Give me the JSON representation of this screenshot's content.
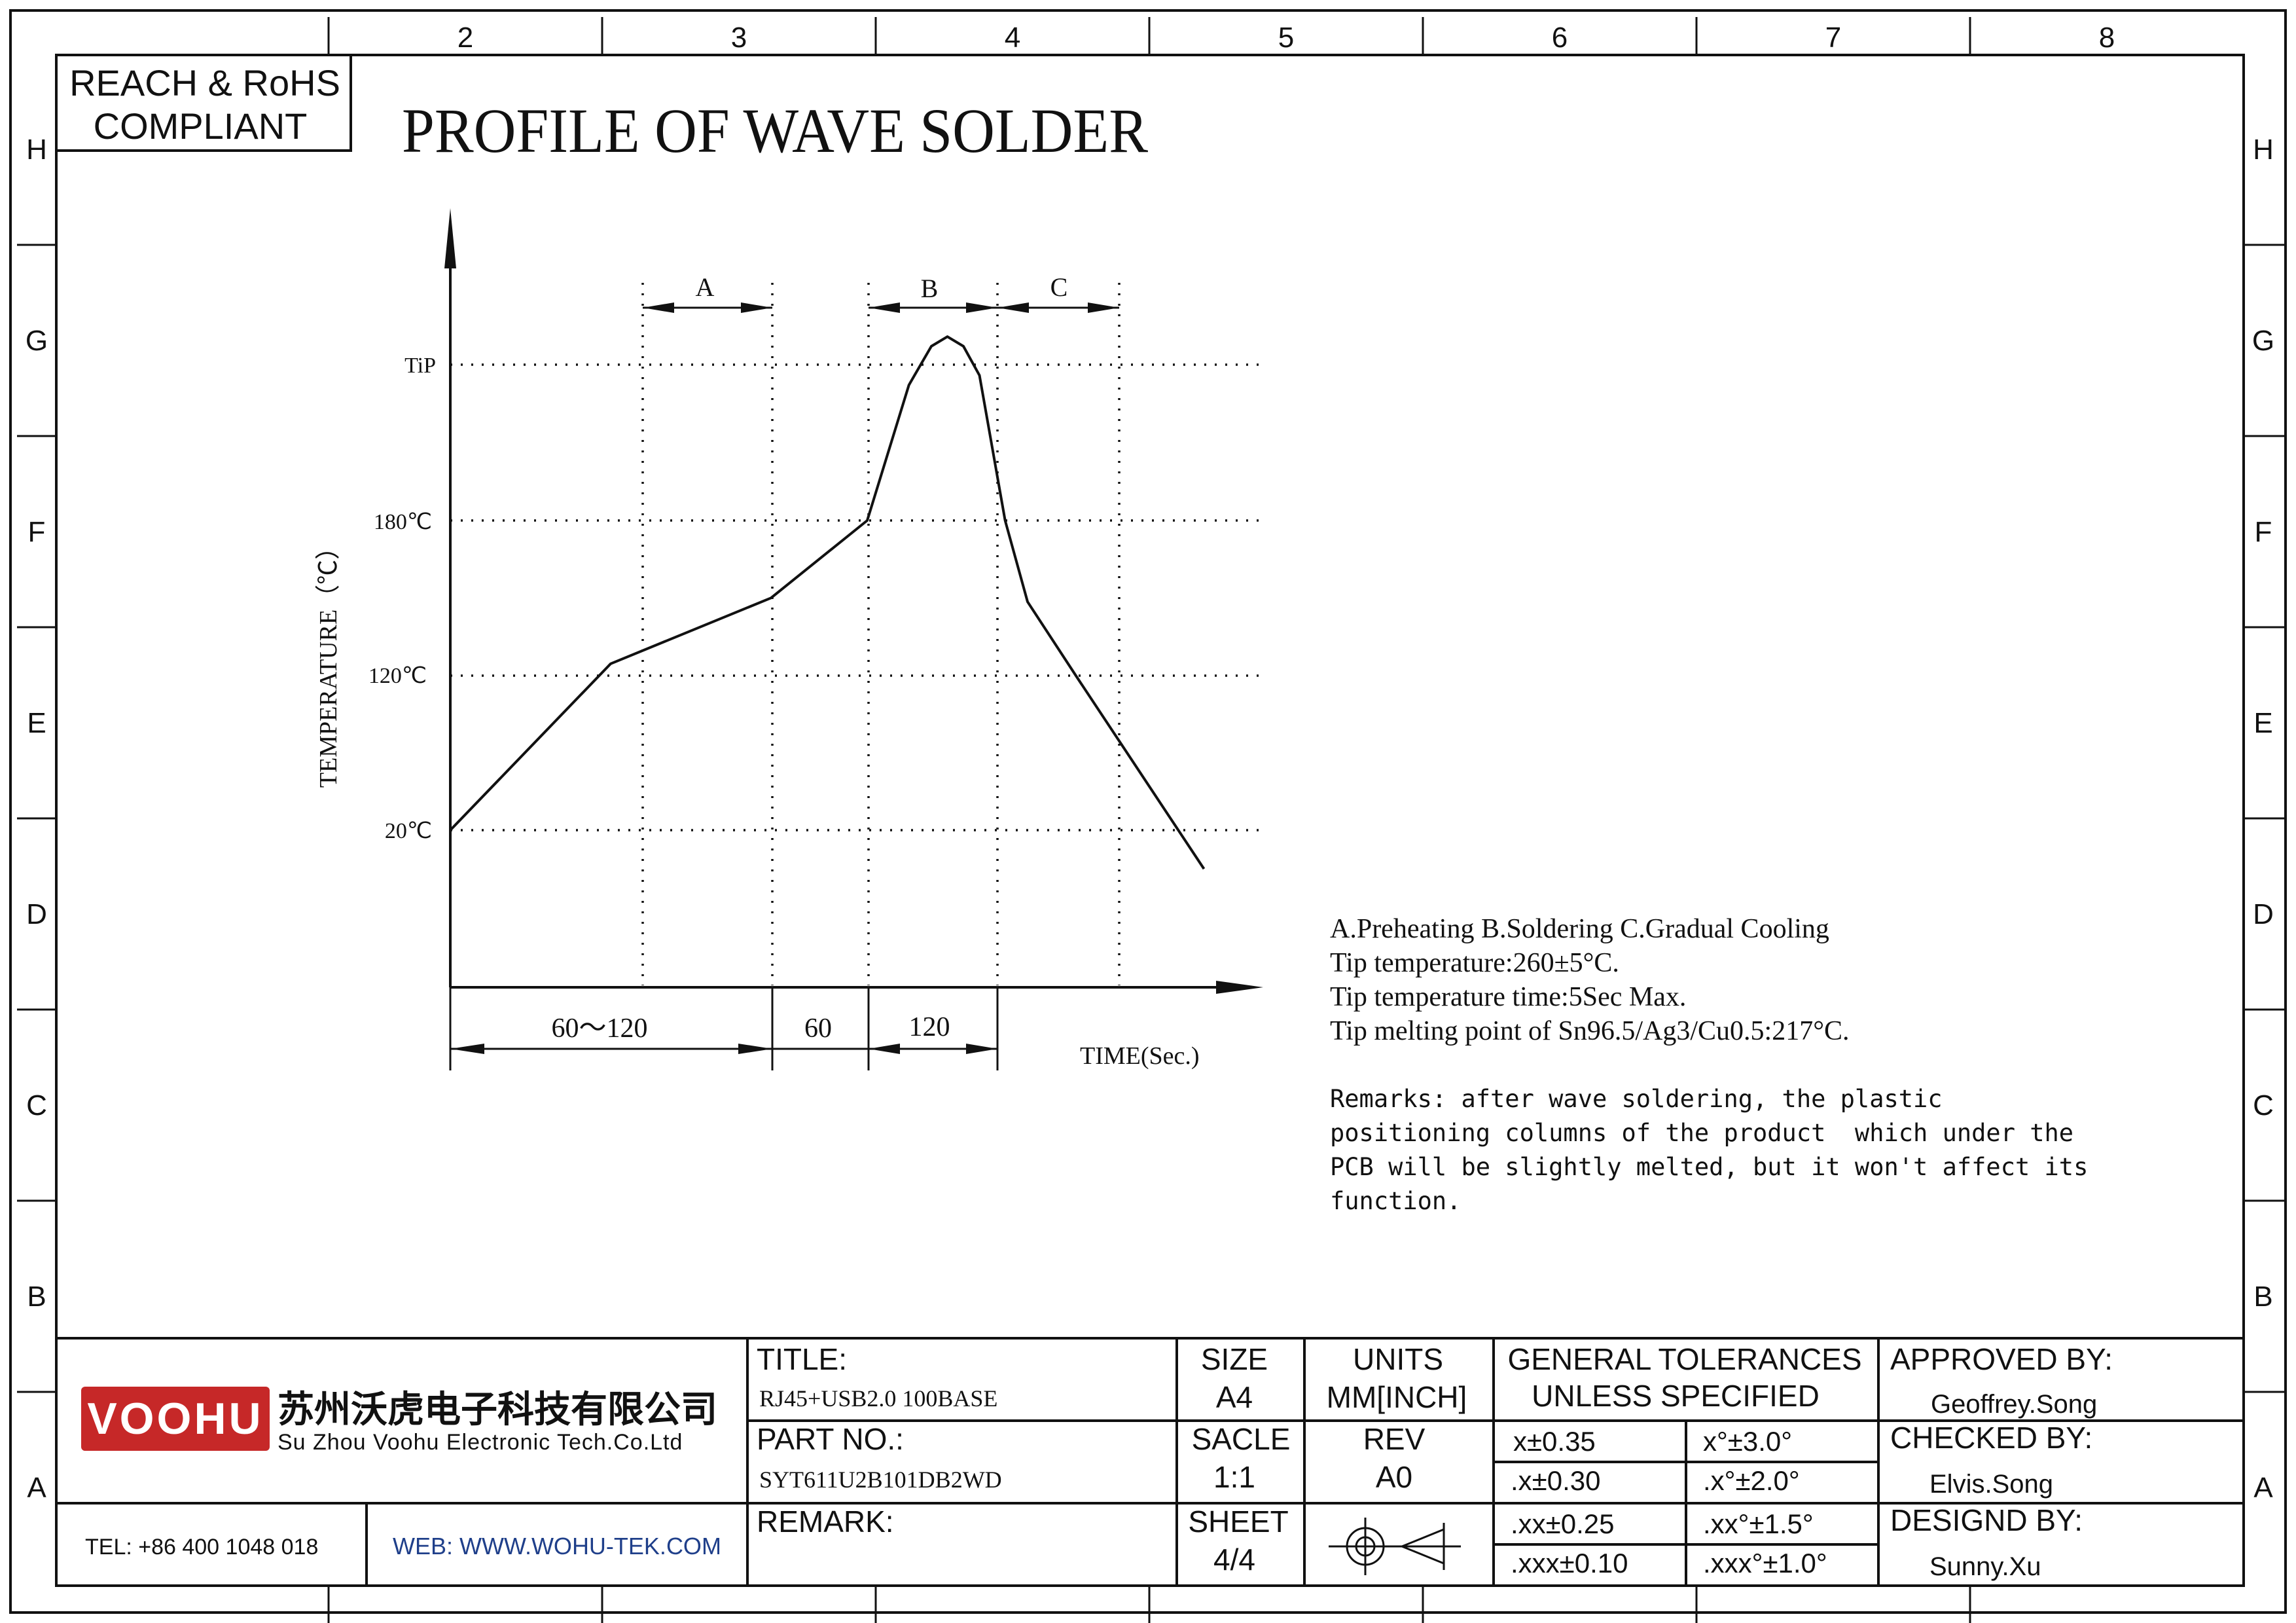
{
  "frame": {
    "columns": [
      "2",
      "3",
      "4",
      "5",
      "6",
      "7",
      "8"
    ],
    "rows": [
      "H",
      "G",
      "F",
      "E",
      "D",
      "C",
      "B",
      "A"
    ]
  },
  "compliance_badge": [
    "REACH & RoHS",
    "COMPLIANT"
  ],
  "drawing_title": "PROFILE OF WAVE SOLDER",
  "chart_data": {
    "type": "line",
    "title": "",
    "ylabel": "TEMPERATURE（℃）",
    "xlabel": "TIME(Sec.)",
    "y_ticks": [
      "TiP",
      "180℃",
      "120℃",
      "20℃"
    ],
    "x_segments": [
      "60～120",
      "60",
      "120"
    ],
    "zones": [
      "A",
      "B",
      "C"
    ],
    "profile": {
      "description": "schematic temperature vs time curve",
      "points": [
        [
          0,
          20
        ],
        [
          50,
          106
        ],
        [
          100,
          140
        ],
        [
          130,
          180
        ],
        [
          143,
          250
        ],
        [
          150,
          270
        ],
        [
          155,
          275
        ],
        [
          160,
          270
        ],
        [
          165,
          255
        ],
        [
          173,
          180
        ],
        [
          180,
          138
        ],
        [
          195,
          100
        ],
        [
          235,
          0
        ]
      ]
    }
  },
  "notes": {
    "lines": [
      "A.Preheating  B.Soldering  C.Gradual Cooling",
      "Tip temperature:260±5°C.",
      "Tip temperature time:5Sec Max.",
      "Tip melting point of Sn96.5/Ag3/Cu0.5:217°C."
    ],
    "remarks": [
      "Remarks: after wave soldering, the plastic",
      "positioning columns of the product  which under the",
      "PCB will be slightly melted, but it won't affect its",
      "function."
    ]
  },
  "title_block": {
    "logo_text": "VOOHU",
    "company_cn": "苏州沃虎电子科技有限公司",
    "company_en": "Su Zhou Voohu Electronic Tech.Co.Ltd",
    "tel": "TEL: +86 400 1048 018",
    "web": "WEB: WWW.WOHU-TEK.COM",
    "title_label": "TITLE:",
    "title_value": "RJ45+USB2.0 100BASE",
    "partno_label": "PART NO.:",
    "partno_value": "SYT611U2B101DB2WD",
    "remark_label": "REMARK:",
    "size_label": "SIZE",
    "size_value": "A4",
    "units_label": "UNITS",
    "units_value": "MM[INCH]",
    "scale_label": "SACLE",
    "scale_value": "1:1",
    "rev_label": "REV",
    "rev_value": "A0",
    "sheet_label": "SHEET",
    "sheet_value": "4/4",
    "projection_symbol": "first-angle-projection-icon",
    "tol_title": [
      "GENERAL TOLERANCES",
      "UNLESS SPECIFIED"
    ],
    "tolerances": [
      [
        "x±0.35",
        "x°±3.0°"
      ],
      [
        ".x±0.30",
        ".x°±2.0°"
      ],
      [
        ".xx±0.25",
        ".xx°±1.5°"
      ],
      [
        ".xxx±0.10",
        ".xxx°±1.0°"
      ]
    ],
    "approved_label": "APPROVED BY:",
    "approved_value": "Geoffrey.Song",
    "checked_label": "CHECKED BY:",
    "checked_value": "Elvis.Song",
    "designed_label": "DESIGND BY:",
    "designed_value": "Sunny.Xu"
  },
  "colors": {
    "logo_red": "#c62828",
    "web_blue": "#1f3f8a",
    "line": "#111111"
  }
}
